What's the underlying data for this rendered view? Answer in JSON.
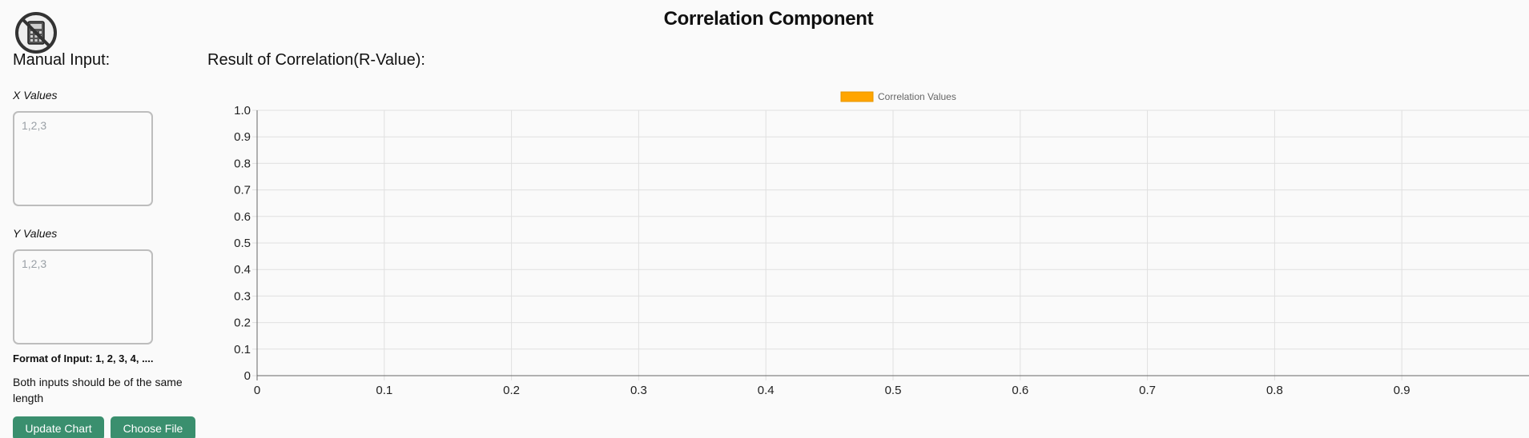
{
  "header": {
    "title": "Correlation Component",
    "app_icon": "calculator-icon"
  },
  "left_panel": {
    "heading": "Manual Input:",
    "x_label": "X Values",
    "x_placeholder": "1,2,3",
    "x_value": "",
    "y_label": "Y Values",
    "y_placeholder": "1,2,3",
    "y_value": "",
    "format_note": "Format of Input: 1, 2, 3, 4, ....",
    "length_note": "Both inputs should be of the same length",
    "update_button": "Update Chart",
    "choose_file_button": "Choose File"
  },
  "result": {
    "heading": "Result of Correlation(R-Value):"
  },
  "colors": {
    "button_bg": "#3a8f6e",
    "legend_swatch": "#ffa500"
  },
  "chart_data": {
    "type": "bar",
    "title": "",
    "xlabel": "",
    "ylabel": "",
    "series": [
      {
        "name": "Correlation Values",
        "color": "#ffa500",
        "values": []
      }
    ],
    "x_ticks": [
      "0",
      "0.1",
      "0.2",
      "0.3",
      "0.4",
      "0.5",
      "0.6",
      "0.7",
      "0.8",
      "0.9"
    ],
    "y_ticks": [
      "0",
      "0.1",
      "0.2",
      "0.3",
      "0.4",
      "0.5",
      "0.6",
      "0.7",
      "0.8",
      "0.9",
      "1.0"
    ],
    "xlim": [
      0,
      1
    ],
    "ylim": [
      0,
      1
    ],
    "grid": true,
    "legend_position": "top-center"
  }
}
